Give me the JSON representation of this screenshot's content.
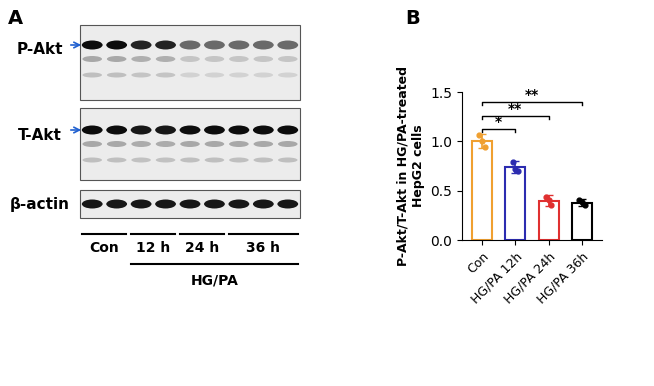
{
  "panel_a": {
    "label": "A",
    "rows": [
      "P-Akt",
      "T-Akt",
      "β-actin"
    ],
    "lanes": [
      "Con",
      "12 h",
      "24 h",
      "36 h"
    ],
    "treatment": "HG/PA"
  },
  "chart_data": {
    "label": "B",
    "type": "bar",
    "categories": [
      "Con",
      "HG/PA 12h",
      "HG/PA 24h",
      "HG/PA 36h"
    ],
    "values": [
      1.0,
      0.74,
      0.4,
      0.38
    ],
    "errors": [
      0.07,
      0.06,
      0.06,
      0.04
    ],
    "points": [
      [
        1.06,
        1.0,
        0.94
      ],
      [
        0.79,
        0.72,
        0.7
      ],
      [
        0.44,
        0.41,
        0.35
      ],
      [
        0.41,
        0.39,
        0.35
      ]
    ],
    "colors": [
      "#f0a030",
      "#2c2cb0",
      "#e03030",
      "#000000"
    ],
    "ylabel": "P-Akt/T-Akt in HG/PA-treated\nHepG2 cells",
    "ylim": [
      0,
      1.5
    ],
    "yticks": [
      0.0,
      0.5,
      1.0,
      1.5
    ],
    "significance": [
      {
        "from": "Con",
        "to": "HG/PA 12h",
        "label": "*"
      },
      {
        "from": "Con",
        "to": "HG/PA 24h",
        "label": "**"
      },
      {
        "from": "Con",
        "to": "HG/PA 36h",
        "label": "**"
      }
    ]
  }
}
